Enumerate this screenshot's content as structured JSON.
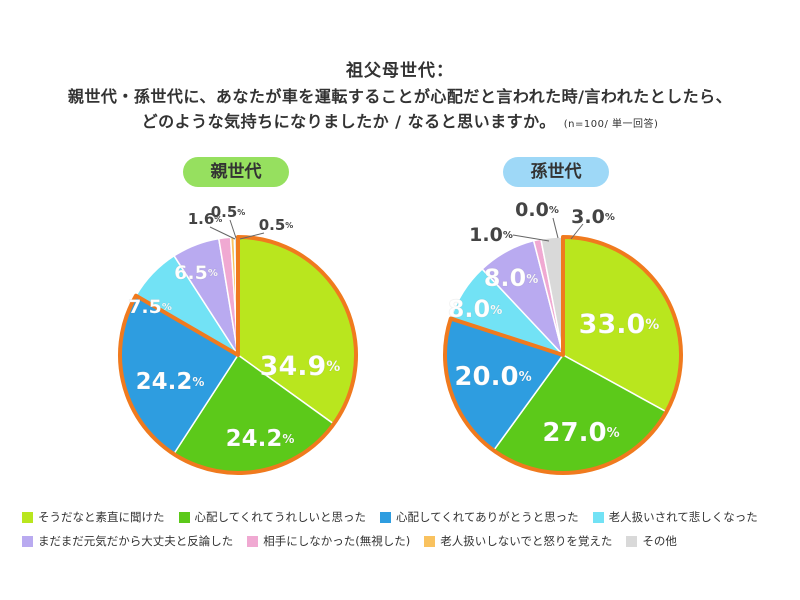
{
  "title": {
    "line1": "祖父母世代：",
    "line2": "親世代・孫世代に、あなたが車を運転することが心配だと言われた時/言われたとしたら、",
    "line3": "どのような気持ちになりましたか / なると思いますか。",
    "note": "(n=100/ 単一回答)"
  },
  "legend": [
    {
      "label": "そうだなと素直に聞けた",
      "color": "#b9e61e"
    },
    {
      "label": "心配してくれてうれしいと思った",
      "color": "#5cc91a"
    },
    {
      "label": "心配してくれてありがとうと思った",
      "color": "#2e9de0"
    },
    {
      "label": "老人扱いされて悲しくなった",
      "color": "#72e2f5"
    },
    {
      "label": "まだまだ元気だから大丈夫と反論した",
      "color": "#b9aaf0"
    },
    {
      "label": "相手にしなかった(無視した)",
      "color": "#f0a9d2"
    },
    {
      "label": "老人扱いしないでと怒りを覚えた",
      "color": "#f9c25f"
    },
    {
      "label": "その他",
      "color": "#d9d9d9"
    }
  ],
  "chart_data": [
    {
      "type": "pie",
      "title": "親世代",
      "unit": "%",
      "labels": [
        "そうだなと素直に聞けた",
        "心配してくれてうれしいと思った",
        "心配してくれてありがとうと思った",
        "老人扱いされて悲しくなった",
        "まだまだ元気だから大丈夫と反論した",
        "相手にしなかった(無視した)",
        "老人扱いしないでと怒りを覚えた",
        "その他"
      ],
      "values": [
        34.9,
        24.2,
        24.2,
        7.5,
        6.5,
        1.6,
        0.5,
        0.5
      ],
      "value_labels": [
        "34.9",
        "24.2",
        "24.2",
        "7.5",
        "6.5",
        "1.6",
        "0.5",
        "0.5"
      ],
      "highlight_color": "#f07a1e"
    },
    {
      "type": "pie",
      "title": "孫世代",
      "unit": "%",
      "labels": [
        "そうだなと素直に聞けた",
        "心配してくれてうれしいと思った",
        "心配してくれてありがとうと思った",
        "老人扱いされて悲しくなった",
        "まだまだ元気だから大丈夫と反論した",
        "相手にしなかった(無視した)",
        "老人扱いしないでと怒りを覚えた",
        "その他"
      ],
      "values": [
        33.0,
        27.0,
        20.0,
        8.0,
        8.0,
        1.0,
        0.0,
        3.0
      ],
      "value_labels": [
        "33.0",
        "27.0",
        "20.0",
        "8.0",
        "8.0",
        "1.0",
        "0.0",
        "3.0"
      ],
      "highlight_color": "#f07a1e"
    }
  ]
}
